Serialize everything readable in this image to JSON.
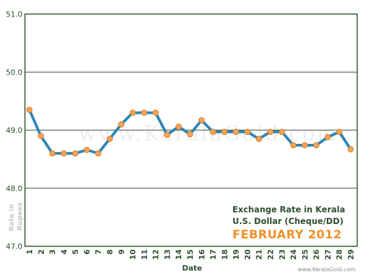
{
  "chart_data": {
    "type": "line",
    "title": "Exchange Rate in Kerala",
    "subtitle": "U.S. Dollar (Cheque/DD)",
    "period": "FEBRUARY 2012",
    "xlabel": "Date",
    "ylabel": "Rate in Rupees",
    "ylim": [
      47.0,
      51.0
    ],
    "yticks": [
      "47.0",
      "48.0",
      "49.0",
      "50.0",
      "51.0"
    ],
    "grid": true,
    "x": [
      1,
      2,
      3,
      4,
      5,
      6,
      7,
      8,
      9,
      10,
      11,
      12,
      13,
      14,
      15,
      16,
      17,
      18,
      19,
      20,
      21,
      22,
      23,
      24,
      25,
      26,
      27,
      28,
      29
    ],
    "series": [
      {
        "values": [
          49.35,
          48.9,
          48.6,
          48.6,
          48.6,
          48.66,
          48.6,
          48.85,
          49.1,
          49.3,
          49.3,
          49.3,
          48.92,
          49.06,
          48.93,
          49.17,
          48.97,
          48.97,
          48.97,
          48.97,
          48.85,
          48.97,
          48.97,
          48.74,
          48.74,
          48.74,
          48.88,
          48.97,
          48.67
        ]
      }
    ],
    "colors": {
      "line": "#2f86b5",
      "marker": "#f5a55a",
      "marker_edge": "#d37a2a",
      "title": "#2f4f2f",
      "period": "#f0902a"
    },
    "watermark": "www.KeralaGold.com",
    "credit": "www.KeralaGold.com"
  }
}
